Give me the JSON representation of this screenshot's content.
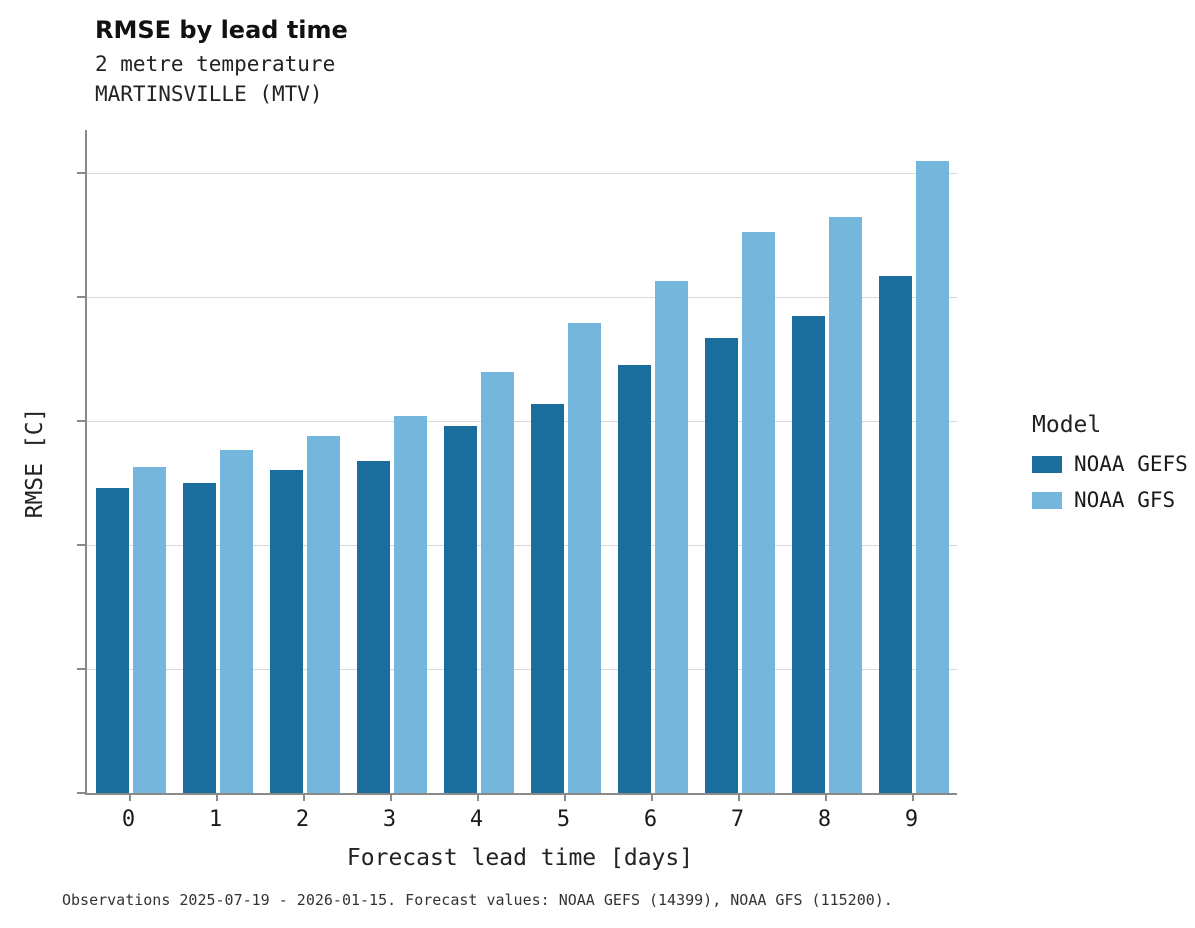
{
  "header": {
    "title": "RMSE by lead time",
    "subtitle1": "2 metre temperature",
    "subtitle2": "MARTINSVILLE (MTV)"
  },
  "legend": {
    "title": "Model",
    "entries": [
      {
        "label": "NOAA GEFS",
        "color": "#1b6d9d"
      },
      {
        "label": "NOAA GFS",
        "color": "#74b6dc"
      }
    ]
  },
  "footer": "Observations 2025-07-19 - 2026-01-15. Forecast values: NOAA GEFS (14399), NOAA GFS (115200).",
  "chart_data": {
    "type": "bar",
    "title": "RMSE by lead time",
    "subtitle": [
      "2 metre temperature",
      "MARTINSVILLE (MTV)"
    ],
    "xlabel": "Forecast lead time [days]",
    "ylabel": "RMSE [C]",
    "categories": [
      "0",
      "1",
      "2",
      "3",
      "4",
      "5",
      "6",
      "7",
      "8",
      "9"
    ],
    "series": [
      {
        "name": "NOAA GEFS",
        "color": "#1b6d9d",
        "values": [
          2.46,
          2.5,
          2.61,
          2.68,
          2.96,
          3.14,
          3.45,
          3.67,
          3.85,
          4.17
        ]
      },
      {
        "name": "NOAA GFS",
        "color": "#74b6dc",
        "values": [
          2.63,
          2.77,
          2.88,
          3.04,
          3.4,
          3.79,
          4.13,
          4.53,
          4.65,
          5.1
        ]
      }
    ],
    "ylim": [
      0,
      5.35
    ],
    "yticks": [
      0,
      1,
      2,
      3,
      4,
      5
    ],
    "grid": true,
    "legend_position": "right"
  }
}
